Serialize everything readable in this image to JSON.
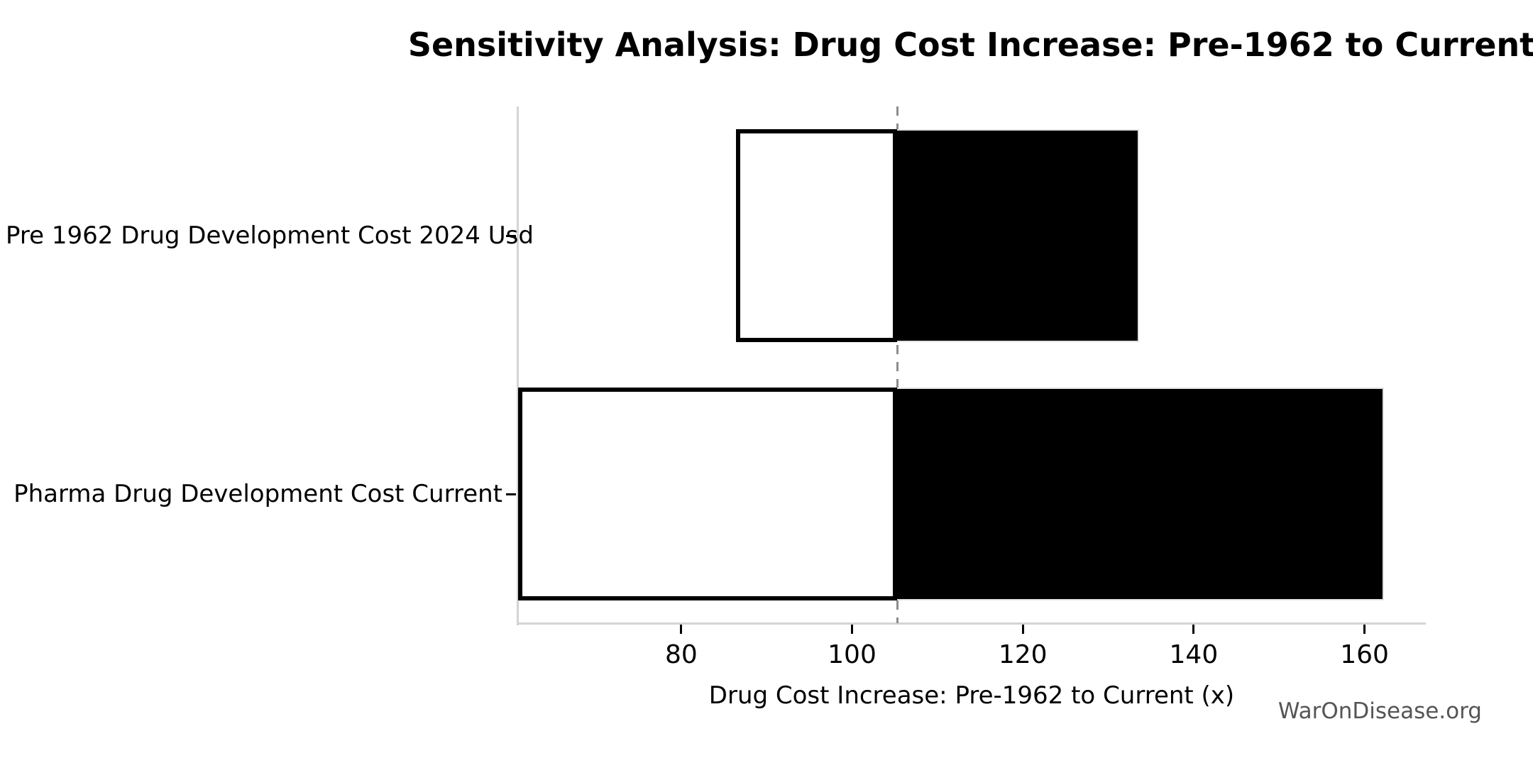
{
  "watermark": "WarOnDisease.org",
  "colors": {
    "background": "#ffffff",
    "spine": "#d4d4d4",
    "baseline": "#8c8c8c",
    "bar_low_fill": "#ffffff",
    "bar_low_border": "#000000",
    "bar_high_fill": "#000000",
    "text": "#000000",
    "watermark_text": "#555555"
  },
  "chart_data": {
    "type": "bar",
    "subtype": "tornado-sensitivity",
    "orientation": "horizontal",
    "title": "Sensitivity Analysis: Drug Cost Increase: Pre-1962 to Current",
    "xlabel": "Drug Cost Increase: Pre-1962 to Current (x)",
    "ylabel": "",
    "grid": false,
    "legend": false,
    "xlim": [
      60.9,
      167.1
    ],
    "xticks": [
      80,
      100,
      120,
      140,
      160
    ],
    "base_value": 105.3,
    "baseline_style": "dashed",
    "categories": [
      "Pre 1962 Drug Development Cost 2024 Usd",
      "Pharma Drug Development Cost Current"
    ],
    "bars": [
      {
        "label": "Pre 1962 Drug Development Cost 2024 Usd",
        "low": 86.4,
        "high": 133.6
      },
      {
        "label": "Pharma Drug Development Cost Current",
        "low": 60.9,
        "high": 162.3
      }
    ]
  }
}
